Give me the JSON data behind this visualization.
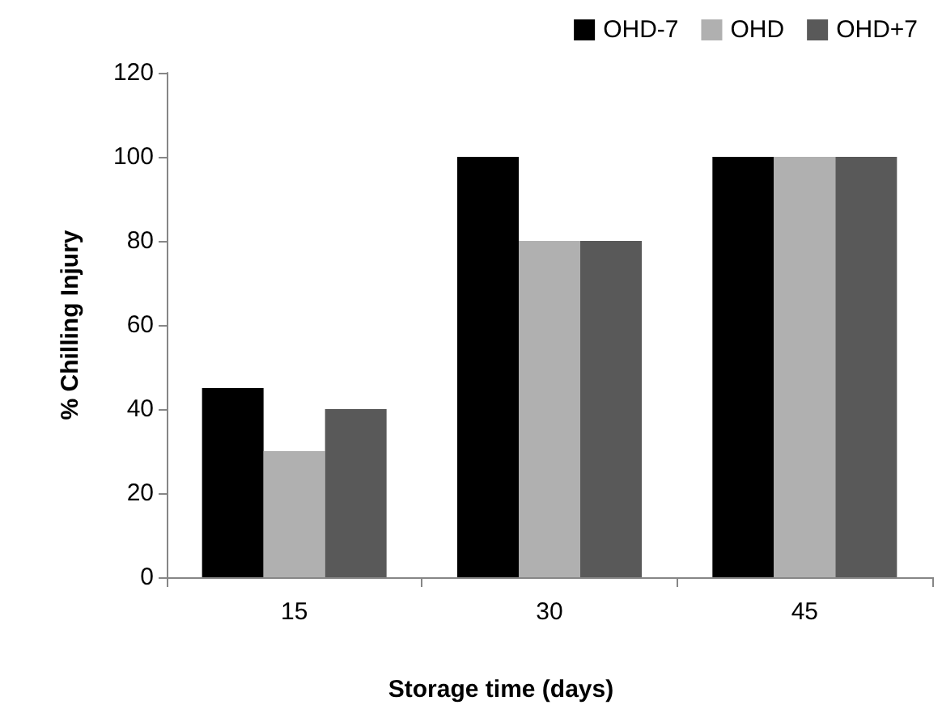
{
  "chart_data": {
    "type": "bar",
    "xlabel": "Storage time (days)",
    "ylabel": "% Chilling Injury",
    "categories": [
      "15",
      "30",
      "45"
    ],
    "series": [
      {
        "name": "OHD-7",
        "color": "#000000",
        "values": [
          45,
          100,
          100
        ]
      },
      {
        "name": "OHD",
        "color": "#b0b0b0",
        "values": [
          30,
          80,
          100
        ]
      },
      {
        "name": "OHD+7",
        "color": "#595959",
        "values": [
          40,
          80,
          100
        ]
      }
    ],
    "ylim": [
      0,
      120
    ],
    "yticks": [
      0,
      20,
      40,
      60,
      80,
      100,
      120
    ],
    "grid": false,
    "legend": "top right"
  }
}
